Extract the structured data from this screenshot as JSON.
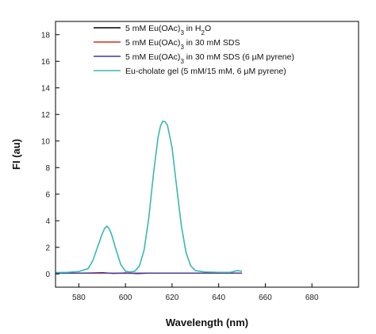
{
  "chart_data": {
    "type": "line",
    "xlabel": "Wavelength (nm)",
    "ylabel": "FI (au)",
    "xlim": [
      570,
      700
    ],
    "ylim": [
      -1,
      19
    ],
    "x_ticks": [
      580,
      600,
      620,
      640,
      660,
      680
    ],
    "y_ticks": [
      0,
      2,
      4,
      6,
      8,
      10,
      12,
      14,
      16,
      18
    ],
    "legend_position": "top-right",
    "series": [
      {
        "name": "5 mM Eu(OAc)3 in H2O",
        "legend": {
          "main": "5 mM Eu(OAc)",
          "sub": "3",
          "tail": " in H",
          "sub2": "2",
          "tail2": "O"
        },
        "color": "#000000",
        "x": [
          570,
          580,
          590,
          600,
          610,
          620,
          630,
          640,
          650
        ],
        "y": [
          0.05,
          0.05,
          0.05,
          0.05,
          0.05,
          0.05,
          0.05,
          0.05,
          0.05
        ]
      },
      {
        "name": "5 mM Eu(OAc)3 in 30 mM SDS",
        "legend": {
          "main": "5 mM Eu(OAc)",
          "sub": "3",
          "tail": " in 30 mM SDS"
        },
        "color": "#d03020",
        "x": [
          570,
          580,
          590,
          600,
          610,
          620,
          630,
          640,
          650
        ],
        "y": [
          0.05,
          0.06,
          0.05,
          0.04,
          0.06,
          0.05,
          0.05,
          0.06,
          0.05
        ]
      },
      {
        "name": "5 mM Eu(OAc)3 in 30 mM SDS (6 µM pyrene)",
        "legend": {
          "main": "5 mM Eu(OAc)",
          "sub": "3",
          "tail": " in 30 mM SDS (6 µM pyrene)"
        },
        "color": "#3a3aa0",
        "x": [
          570,
          580,
          590,
          595,
          600,
          605,
          610,
          620,
          630,
          640,
          650
        ],
        "y": [
          0.05,
          0.05,
          0.1,
          0.03,
          0.08,
          0.02,
          0.05,
          0.05,
          0.05,
          0.08,
          0.05
        ]
      },
      {
        "name": "Eu-cholate gel (5 mM/15 mM, 6 µM pyrene)",
        "legend": {
          "main": "Eu-cholate gel (5 mM/15 mM, 6 µM pyrene)"
        },
        "color": "#3ab7b7",
        "x": [
          570,
          575,
          580,
          584,
          586,
          588,
          590,
          591,
          592,
          593,
          594,
          596,
          598,
          600,
          602,
          604,
          606,
          608,
          610,
          612,
          614,
          615,
          616,
          617,
          618,
          620,
          622,
          624,
          626,
          628,
          630,
          634,
          640,
          645,
          648,
          650
        ],
        "y": [
          0.1,
          0.12,
          0.18,
          0.4,
          1.0,
          2.0,
          3.0,
          3.4,
          3.6,
          3.4,
          3.0,
          1.8,
          0.7,
          0.2,
          0.15,
          0.2,
          0.6,
          1.8,
          4.2,
          7.5,
          10.3,
          11.1,
          11.5,
          11.45,
          11.2,
          9.5,
          6.5,
          3.6,
          1.6,
          0.6,
          0.25,
          0.15,
          0.12,
          0.12,
          0.25,
          0.2
        ]
      }
    ]
  }
}
